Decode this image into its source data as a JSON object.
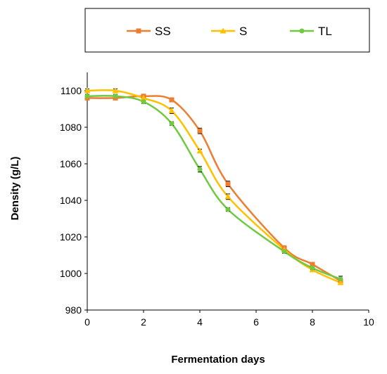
{
  "chart_data": {
    "type": "line",
    "title": "",
    "xlabel": "Fermentation days",
    "ylabel": "Density (g/L)",
    "xlim": [
      0,
      10
    ],
    "ylim": [
      980,
      1110
    ],
    "x_ticks": [
      0,
      2,
      4,
      6,
      8,
      10
    ],
    "y_ticks": [
      980,
      1000,
      1020,
      1040,
      1060,
      1080,
      1100
    ],
    "grid": false,
    "legend_position": "top",
    "series": [
      {
        "name": "SS",
        "color": "#ED7D31",
        "marker": "square",
        "x": [
          0,
          1,
          2,
          3,
          4,
          5,
          7,
          8,
          9
        ],
        "y": [
          1096,
          1096,
          1097,
          1095,
          1078,
          1049,
          1014,
          1005,
          996
        ],
        "err": [
          1,
          1,
          1,
          1,
          1.5,
          1.5,
          1,
          1,
          1
        ]
      },
      {
        "name": "S",
        "color": "#FFC000",
        "marker": "triangle",
        "x": [
          0,
          1,
          2,
          3,
          4,
          5,
          7,
          8,
          9
        ],
        "y": [
          1100,
          1100,
          1096,
          1089,
          1067,
          1042,
          1013,
          1002,
          995
        ],
        "err": [
          1,
          1,
          1,
          1.5,
          1,
          1.5,
          1,
          1,
          1
        ]
      },
      {
        "name": "TL",
        "color": "#70C940",
        "marker": "circle",
        "x": [
          0,
          1,
          2,
          3,
          4,
          5,
          7,
          8,
          9
        ],
        "y": [
          1097,
          1097,
          1094,
          1082,
          1057,
          1035,
          1012,
          1003,
          997
        ],
        "err": [
          1,
          1,
          1,
          1,
          1.5,
          1,
          1,
          1,
          1.5
        ]
      }
    ]
  }
}
